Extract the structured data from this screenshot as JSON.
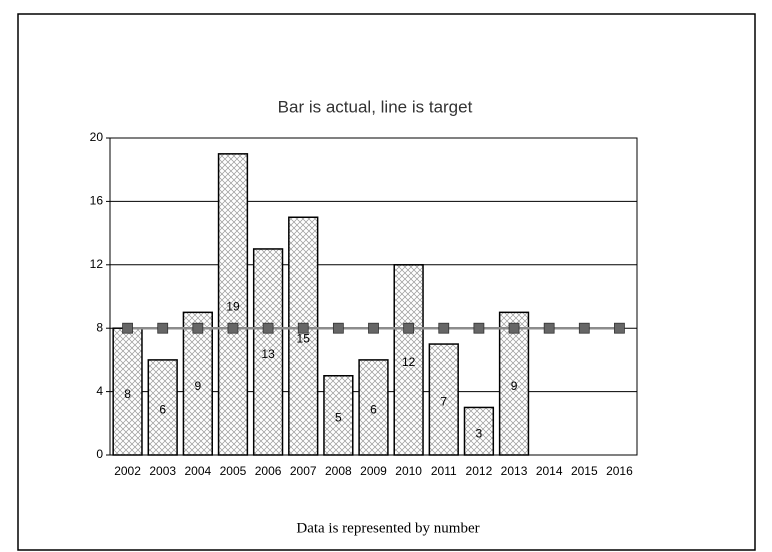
{
  "chart_data": {
    "type": "bar_line",
    "title": "Bar is actual, line is target",
    "note": "Data is represented by number",
    "categories": [
      "2002",
      "2003",
      "2004",
      "2005",
      "2006",
      "2007",
      "2008",
      "2009",
      "2010",
      "2011",
      "2012",
      "2013",
      "2014",
      "2015",
      "2016"
    ],
    "series": [
      {
        "type": "bar",
        "color": "#000000",
        "values": [
          8,
          6,
          9,
          19,
          13,
          15,
          5,
          6,
          12,
          7,
          3,
          9,
          null,
          null,
          null
        ]
      },
      {
        "type": "line",
        "color": "#8c8c8c",
        "marker_color": "#666666",
        "values": [
          8,
          8,
          8,
          8,
          8,
          8,
          8,
          8,
          8,
          8,
          8,
          8,
          8,
          8,
          8
        ]
      }
    ],
    "ylim": [
      0,
      20
    ],
    "yticks": [
      0,
      4,
      8,
      12,
      16,
      20
    ],
    "grid": true
  }
}
